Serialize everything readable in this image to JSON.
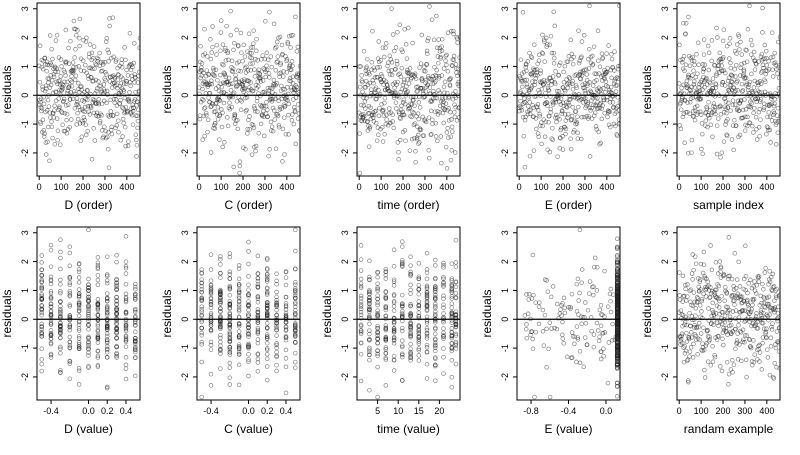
{
  "chart_data": [
    {
      "type": "scatter",
      "title": "",
      "xlabel": "D (order)",
      "ylabel": "residuals",
      "xlim": [
        -10,
        460
      ],
      "ylim": [
        -2.8,
        3.2
      ],
      "xticks": [
        0,
        100,
        200,
        300,
        400
      ],
      "yticks": [
        -2,
        -1,
        0,
        1,
        2,
        3
      ],
      "reference_line_y": 0,
      "grid": false,
      "points": {
        "n": 460,
        "x_kind": "order",
        "x_min": 0,
        "x_max": 460,
        "y_center": 0.1,
        "y_sd": 0.95
      }
    },
    {
      "type": "scatter",
      "title": "",
      "xlabel": "C (order)",
      "ylabel": "residuals",
      "xlim": [
        -10,
        460
      ],
      "ylim": [
        -2.8,
        3.2
      ],
      "xticks": [
        0,
        100,
        200,
        300,
        400
      ],
      "yticks": [
        -2,
        -1,
        0,
        1,
        2,
        3
      ],
      "reference_line_y": 0,
      "grid": false,
      "points": {
        "n": 460,
        "x_kind": "order",
        "x_min": 0,
        "x_max": 460,
        "y_center": 0.1,
        "y_sd": 0.95
      }
    },
    {
      "type": "scatter",
      "title": "",
      "xlabel": "time (order)",
      "ylabel": "residuals",
      "xlim": [
        -10,
        460
      ],
      "ylim": [
        -2.8,
        3.2
      ],
      "xticks": [
        0,
        100,
        200,
        300,
        400
      ],
      "yticks": [
        -2,
        -1,
        0,
        1,
        2,
        3
      ],
      "reference_line_y": 0,
      "grid": false,
      "points": {
        "n": 460,
        "x_kind": "order",
        "x_min": 0,
        "x_max": 460,
        "y_center": 0.1,
        "y_sd": 0.95
      }
    },
    {
      "type": "scatter",
      "title": "",
      "xlabel": "E (order)",
      "ylabel": "residuals",
      "xlim": [
        -10,
        460
      ],
      "ylim": [
        -2.8,
        3.2
      ],
      "xticks": [
        0,
        100,
        200,
        300,
        400
      ],
      "yticks": [
        -2,
        -1,
        0,
        1,
        2,
        3
      ],
      "reference_line_y": 0,
      "grid": false,
      "points": {
        "n": 460,
        "x_kind": "order",
        "x_min": 0,
        "x_max": 460,
        "y_center": 0.1,
        "y_sd": 0.95
      }
    },
    {
      "type": "scatter",
      "title": "",
      "xlabel": "sample index",
      "ylabel": "residuals",
      "xlim": [
        -10,
        460
      ],
      "ylim": [
        -2.8,
        3.2
      ],
      "xticks": [
        0,
        100,
        200,
        300,
        400
      ],
      "yticks": [
        -2,
        -1,
        0,
        1,
        2,
        3
      ],
      "reference_line_y": 0,
      "grid": false,
      "points": {
        "n": 460,
        "x_kind": "order",
        "x_min": 0,
        "x_max": 460,
        "y_center": 0.1,
        "y_sd": 0.95
      }
    },
    {
      "type": "scatter",
      "title": "",
      "xlabel": "D (value)",
      "ylabel": "residuals",
      "xlim": [
        -0.55,
        0.55
      ],
      "ylim": [
        -2.8,
        3.2
      ],
      "xticks": [
        -0.4,
        0.0,
        0.2,
        0.4
      ],
      "xtick_labels": [
        "-0.4",
        "0.0",
        "0.2",
        "0.4"
      ],
      "yticks": [
        -2,
        -1,
        0,
        1,
        2,
        3
      ],
      "reference_line_y": 0,
      "grid": false,
      "points": {
        "n": 460,
        "x_kind": "discrete",
        "x_values": [
          -0.5,
          -0.4,
          -0.3,
          -0.2,
          -0.1,
          0.0,
          0.1,
          0.2,
          0.3,
          0.4,
          0.5
        ],
        "y_center": 0.1,
        "y_sd": 0.95
      }
    },
    {
      "type": "scatter",
      "title": "",
      "xlabel": "C (value)",
      "ylabel": "residuals",
      "xlim": [
        -0.55,
        0.55
      ],
      "ylim": [
        -2.8,
        3.2
      ],
      "xticks": [
        -0.4,
        0.0,
        0.2,
        0.4
      ],
      "xtick_labels": [
        "-0.4",
        "0.0",
        "0.2",
        "0.4"
      ],
      "yticks": [
        -2,
        -1,
        0,
        1,
        2,
        3
      ],
      "reference_line_y": 0,
      "grid": false,
      "points": {
        "n": 460,
        "x_kind": "discrete",
        "x_values": [
          -0.5,
          -0.4,
          -0.3,
          -0.2,
          -0.1,
          0.0,
          0.1,
          0.2,
          0.3,
          0.4,
          0.5
        ],
        "y_center": 0.1,
        "y_sd": 0.95
      }
    },
    {
      "type": "scatter",
      "title": "",
      "xlabel": "time (value)",
      "ylabel": "residuals",
      "xlim": [
        0,
        25
      ],
      "ylim": [
        -2.8,
        3.2
      ],
      "xticks": [
        5,
        10,
        15,
        20
      ],
      "yticks": [
        -2,
        -1,
        0,
        1,
        2,
        3
      ],
      "reference_line_y": 0,
      "grid": false,
      "points": {
        "n": 460,
        "x_kind": "discrete",
        "x_values": [
          1,
          3,
          5,
          7,
          9,
          11,
          13,
          15,
          17,
          19,
          21,
          23,
          24
        ],
        "y_center": 0.1,
        "y_sd": 0.95
      }
    },
    {
      "type": "scatter",
      "title": "",
      "xlabel": "E (value)",
      "ylabel": "residuals",
      "xlim": [
        -0.95,
        0.15
      ],
      "ylim": [
        -2.8,
        3.2
      ],
      "xticks": [
        -0.8,
        -0.4,
        0.0
      ],
      "xtick_labels": [
        "-0.8",
        "-0.4",
        "0.0"
      ],
      "yticks": [
        -2,
        -1,
        0,
        1,
        2,
        3
      ],
      "reference_line_y": 0,
      "grid": false,
      "points": {
        "n": 460,
        "x_kind": "clustered",
        "x_min": -0.9,
        "x_max": 0.12,
        "cluster_x": 0.12,
        "cluster_share": 0.7,
        "y_center": 0.1,
        "y_sd": 0.95
      }
    },
    {
      "type": "scatter",
      "title": "",
      "xlabel": "randam example",
      "ylabel": "residuals",
      "xlim": [
        -10,
        460
      ],
      "ylim": [
        -2.8,
        3.2
      ],
      "xticks": [
        0,
        100,
        200,
        300,
        400
      ],
      "yticks": [
        -2,
        -1,
        0,
        1,
        2,
        3
      ],
      "reference_line_y": 0,
      "grid": false,
      "points": {
        "n": 460,
        "x_kind": "order",
        "x_min": 0,
        "x_max": 460,
        "y_center": 0.1,
        "y_sd": 0.95
      }
    }
  ]
}
